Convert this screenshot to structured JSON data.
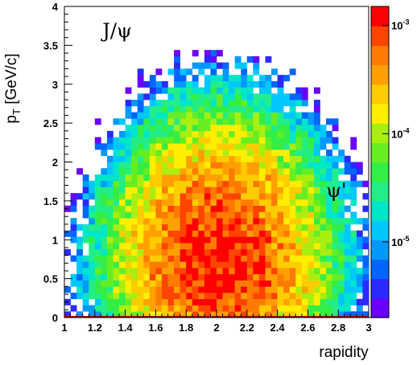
{
  "chart_data": {
    "type": "heatmap",
    "title": "",
    "xlabel": "rapidity",
    "ylabel": "pT [GeV/c]",
    "ylabel_base": "p",
    "ylabel_sub": "T",
    "ylabel_rest": " [GeV/c]",
    "xlim": [
      1,
      3
    ],
    "ylim": [
      0,
      4
    ],
    "x_ticks": [
      "1",
      "1.2",
      "1.4",
      "1.6",
      "1.8",
      "2",
      "2.2",
      "2.4",
      "2.6",
      "2.8",
      "3"
    ],
    "y_ticks": [
      "0",
      "0.5",
      "1",
      "1.5",
      "2",
      "2.5",
      "3",
      "3.5",
      "4"
    ],
    "z_scale": "log",
    "z_range": [
      2e-06,
      0.0015
    ],
    "z_ticks": [
      {
        "base": "10",
        "exp": "-3",
        "value": 0.001
      },
      {
        "base": "10",
        "exp": "-4",
        "value": 0.0001
      },
      {
        "base": "10",
        "exp": "-5",
        "value": 1e-05
      }
    ],
    "annotations": [
      {
        "name": "jpsi-label",
        "text": "J/ψ",
        "x": 1.25,
        "y": 3.6
      },
      {
        "name": "psi-prime-label",
        "text": "ψ'",
        "x": 2.72,
        "y": 1.55
      }
    ],
    "bins": {
      "x_center": 2.02,
      "y_center": 0.6,
      "x_width": 0.3,
      "y_width": 0.5,
      "peak": 0.0011,
      "y_tail_scale": 0.6,
      "cutoff": 5.5e-06,
      "threshold_scatter": 0.55,
      "value_scatter": 0.35
    }
  },
  "colors": {
    "palette": [
      "#6a00ff",
      "#2a2aff",
      "#0066ff",
      "#0099ff",
      "#00c8ff",
      "#00e6c8",
      "#22ee88",
      "#33ee44",
      "#66ee22",
      "#aaee11",
      "#ffee00",
      "#ffcc00",
      "#ffa000",
      "#ff7a00",
      "#ff4400",
      "#ff0000"
    ],
    "axis_line": "#000000",
    "baseline": "#aa0000"
  }
}
